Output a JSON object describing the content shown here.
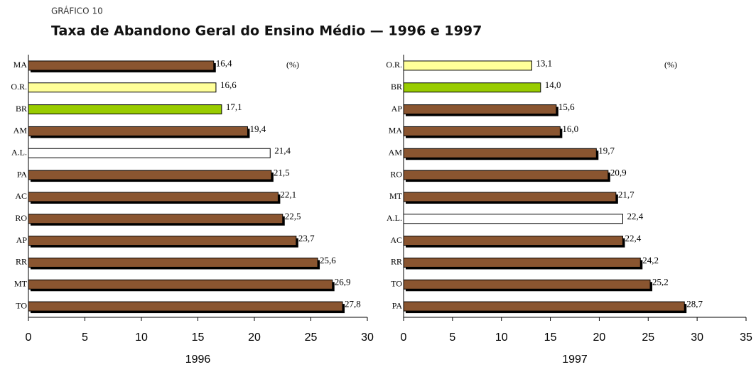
{
  "header": {
    "label": "GRÁFICO 10",
    "title": "Taxa de Abandono Geral do Ensino Médio — 1996 e 1997"
  },
  "chart_data": [
    {
      "type": "hbar",
      "xlabel": "1996",
      "unit": "(%)",
      "categories": [
        "MA",
        "O.R.",
        "BR",
        "AM",
        "A.L.",
        "PA",
        "AC",
        "RO",
        "AP",
        "RR",
        "MT",
        "TO"
      ],
      "values": [
        16.4,
        16.6,
        17.1,
        19.4,
        21.4,
        21.5,
        22.1,
        22.5,
        23.7,
        25.6,
        26.9,
        27.8
      ],
      "value_labels": [
        "16,4",
        "16,6",
        "17,1",
        "19,4",
        "21,4",
        "21,5",
        "22,1",
        "22,5",
        "23,7",
        "25,6",
        "26,9",
        "27,8"
      ],
      "colors": [
        "#8a5530",
        "#ffff99",
        "#99cc00",
        "#8a5530",
        "#ffffff",
        "#8a5530",
        "#8a5530",
        "#8a5530",
        "#8a5530",
        "#8a5530",
        "#8a5530",
        "#8a5530"
      ],
      "shadows": [
        true,
        false,
        false,
        true,
        false,
        true,
        true,
        true,
        true,
        true,
        true,
        true
      ],
      "xlim": [
        0,
        30
      ],
      "xticks": [
        0,
        5,
        10,
        15,
        20,
        25,
        30
      ]
    },
    {
      "type": "hbar",
      "xlabel": "1997",
      "unit": "(%)",
      "categories": [
        "O.R.",
        "BR",
        "AP",
        "MA",
        "AM",
        "RO",
        "MT",
        "A.L.",
        "AC",
        "RR",
        "TO",
        "PA"
      ],
      "values": [
        13.1,
        14.0,
        15.6,
        16.0,
        19.7,
        20.9,
        21.7,
        22.4,
        22.4,
        24.2,
        25.2,
        28.7
      ],
      "value_labels": [
        "13,1",
        "14,0",
        "15,6",
        "16,0",
        "19,7",
        "20,9",
        "21,7",
        "22,4",
        "22,4",
        "24,2",
        "25,2",
        "28,7"
      ],
      "colors": [
        "#ffff99",
        "#99cc00",
        "#8a5530",
        "#8a5530",
        "#8a5530",
        "#8a5530",
        "#8a5530",
        "#ffffff",
        "#8a5530",
        "#8a5530",
        "#8a5530",
        "#8a5530"
      ],
      "shadows": [
        false,
        false,
        true,
        true,
        true,
        true,
        true,
        false,
        true,
        true,
        true,
        true
      ],
      "xlim": [
        0,
        35
      ],
      "xticks": [
        0,
        5,
        10,
        15,
        20,
        25,
        30,
        35
      ]
    }
  ]
}
